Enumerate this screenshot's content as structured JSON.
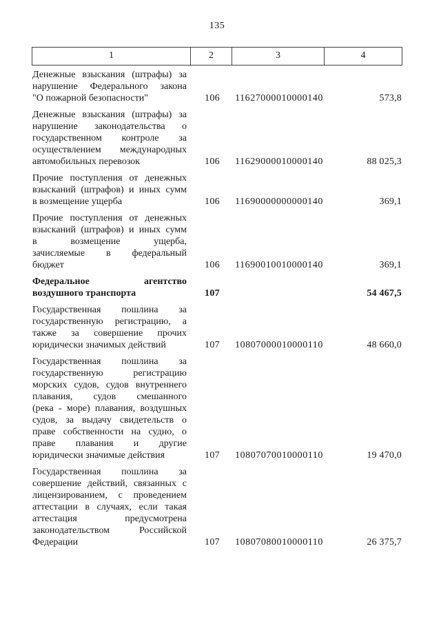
{
  "colors": {
    "text": "#1a1a1a",
    "border": "#3f3f3f",
    "background": "#ffffff"
  },
  "page": {
    "number": "135"
  },
  "table": {
    "header_cols": [
      "1",
      "2",
      "3",
      "4"
    ],
    "rows": [
      {
        "lines": [
          "Денежные взыскания (штрафы) за",
          "нарушение Федерального закона",
          "\"О пожарной безопасности\""
        ],
        "admin_code": "106",
        "kbk_code": "11627000010000140",
        "amount": "573,8",
        "bold": false
      },
      {
        "lines": [
          "Денежные взыскания (штрафы) за",
          "нарушение законодательства о",
          "государственном контроле за",
          "осуществлением международных",
          "автомобильных перевозок"
        ],
        "admin_code": "106",
        "kbk_code": "11629000010000140",
        "amount": "88 025,3",
        "bold": false
      },
      {
        "lines": [
          "Прочие поступления от денежных",
          "взысканий (штрафов) и иных сумм",
          "в возмещение ущерба"
        ],
        "admin_code": "106",
        "kbk_code": "11690000000000140",
        "amount": "369,1",
        "bold": false
      },
      {
        "lines": [
          "Прочие поступления от денежных",
          "взысканий (штрафов) и иных сумм",
          "в возмещение ущерба,",
          "зачисляемые в федеральный",
          "бюджет"
        ],
        "admin_code": "106",
        "kbk_code": "11690010010000140",
        "amount": "369,1",
        "bold": false
      },
      {
        "lines": [
          "Федеральное агентство",
          "воздушного транспорта"
        ],
        "admin_code": "107",
        "kbk_code": "",
        "amount": "54 467,5",
        "bold": true
      },
      {
        "lines": [
          "Государственная пошлина за",
          "государственную регистрацию, а",
          "также за совершение прочих",
          "юридически значимых действий"
        ],
        "admin_code": "107",
        "kbk_code": "10807000010000110",
        "amount": "48 660,0",
        "bold": false
      },
      {
        "lines": [
          "Государственная пошлина за",
          "государственную регистрацию",
          "морских судов, судов внутреннего",
          "плавания, судов смешанного",
          "(река - море) плавания, воздушных",
          "судов, за выдачу свидетельств о",
          "праве собственности на судно, о",
          "праве плавания и другие",
          "юридически значимые действия"
        ],
        "admin_code": "107",
        "kbk_code": "10807070010000110",
        "amount": "19 470,0",
        "bold": false
      },
      {
        "lines": [
          "Государственная пошлина за",
          "совершение действий, связанных с",
          "лицензированием, с проведением",
          "аттестации в случаях, если такая",
          "аттестация предусмотрена",
          "законодательством Российской",
          "Федерации"
        ],
        "admin_code": "107",
        "kbk_code": "10807080010000110",
        "amount": "26 375,7",
        "bold": false
      }
    ]
  }
}
